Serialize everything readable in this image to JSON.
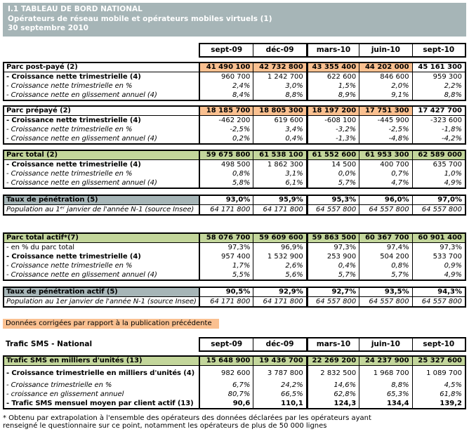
{
  "header": {
    "line1": "I.1 TABLEAU DE BORD NATIONAL",
    "line2": "Opérateurs de réseau mobile et opérateurs mobiles virtuels (1)",
    "line3": "30 septembre 2010"
  },
  "columns": [
    "sept-09",
    "déc-09",
    "mars-10",
    "juin-10",
    "sept-10"
  ],
  "legend_text": "Données corrigées par rapport à la publication précédente",
  "sms_title": "Trafic SMS - National",
  "footnote": {
    "line1": "* Obtenu par extrapolation à l'ensemble des opérateurs des données déclarées par les opérateurs ayant",
    "line2": "renseigné le questionnaire sur ce point, notamment les opérateurs de plus de 50 000 lignes"
  },
  "colors": {
    "header_band": "#a6b5b7",
    "corrected_orange": "#fac090",
    "highlight_green": "#c3d69b",
    "label_gray": "#a6b5b7"
  },
  "tables": [
    {
      "id": "parc-post-paye",
      "rows": [
        {
          "label": "Parc post-payé (2)",
          "label_class": "b",
          "hdr": true,
          "value_class": "b",
          "value_bgs": [
            "orange",
            "orange",
            "orange",
            "orange",
            ""
          ],
          "values": [
            "41 490 100",
            "42 732 800",
            "43 355 400",
            "44 202 000",
            "45 161 300"
          ]
        },
        {
          "label": "- Croissance nette trimestrielle (4)",
          "label_class": "b",
          "value_class": "",
          "values": [
            "960 700",
            "1 242 700",
            "622 600",
            "846 600",
            "959 300"
          ]
        },
        {
          "label": "- Croissance nette trimestrielle en %",
          "label_class": "i",
          "value_class": "i",
          "values": [
            "2,4%",
            "3,0%",
            "1,5%",
            "2,0%",
            "2,2%"
          ]
        },
        {
          "label": "- Croissance nette en glissement annuel (4)",
          "label_class": "i",
          "value_class": "i",
          "values": [
            "8,4%",
            "8,8%",
            "8,9%",
            "9,1%",
            "8,8%"
          ]
        }
      ]
    },
    {
      "id": "parc-prepaye",
      "rows": [
        {
          "label": "Parc prépayé (2)",
          "label_class": "b",
          "hdr": true,
          "value_class": "b",
          "value_bgs": [
            "orange",
            "orange",
            "orange",
            "orange",
            ""
          ],
          "values": [
            "18 185 700",
            "18 805 300",
            "18 197 200",
            "17 751 300",
            "17 427 700"
          ]
        },
        {
          "label": "- Croissance nette trimestrielle (4)",
          "label_class": "b",
          "value_class": "",
          "values": [
            "-462 200",
            "619 600",
            "-608 100",
            "-445 900",
            "-323 600"
          ]
        },
        {
          "label": "- Croissance nette trimestrielle en %",
          "label_class": "i",
          "value_class": "i",
          "values": [
            "-2,5%",
            "3,4%",
            "-3,2%",
            "-2,5%",
            "-1,8%"
          ]
        },
        {
          "label": "- Croissance nette en glissement annuel (4)",
          "label_class": "i",
          "value_class": "i",
          "values": [
            "0,2%",
            "0,4%",
            "-1,3%",
            "-4,8%",
            "-4,2%"
          ]
        }
      ]
    },
    {
      "id": "parc-total",
      "rows": [
        {
          "label": "Parc total (2)",
          "label_class": "b",
          "label_bg": "green",
          "hdr": true,
          "value_class": "b",
          "value_bgs": [
            "green",
            "green",
            "green",
            "green",
            "green"
          ],
          "values": [
            "59 675 800",
            "61 538 100",
            "61 552 600",
            "61 953 300",
            "62 589 000"
          ]
        },
        {
          "label": "- Croissance nette trimestrielle (4)",
          "label_class": "b",
          "value_class": "",
          "values": [
            "498 500",
            "1 862 300",
            "14 500",
            "400 700",
            "635 700"
          ]
        },
        {
          "label": "- Croissance nette trimestrielle en %",
          "label_class": "i",
          "value_class": "i",
          "values": [
            "0,8%",
            "3,1%",
            "0,0%",
            "0,7%",
            "1,0%"
          ]
        },
        {
          "label": "- Croissance nette en glissement annuel (4)",
          "label_class": "i",
          "value_class": "i",
          "values": [
            "5,8%",
            "6,1%",
            "5,7%",
            "4,7%",
            "4,9%"
          ]
        }
      ]
    },
    {
      "id": "taux-penetration",
      "rows": [
        {
          "label": "Taux de pénétration (5)",
          "label_class": "b",
          "label_bg": "gray",
          "hdr": true,
          "value_class": "b",
          "values": [
            "93,0%",
            "95,9%",
            "95,3%",
            "96,0%",
            "97,0%"
          ]
        },
        {
          "label": "Population au 1ᵉʳ janvier de l'année N-1 (source Insee)",
          "label_class": "i",
          "value_class": "i",
          "values": [
            "64 171 800",
            "64 171 800",
            "64 557 800",
            "64 557 800",
            "64 557 800"
          ]
        }
      ]
    },
    {
      "id": "parc-total-actif",
      "rows": [
        {
          "label": "Parc total actif*(7)",
          "label_class": "b",
          "label_bg": "green",
          "hdr": true,
          "value_class": "b",
          "value_bgs": [
            "green",
            "green",
            "green",
            "green",
            "green"
          ],
          "values": [
            "58 076 700",
            "59 609 600",
            "59 863 500",
            "60 367 700",
            "60 901 400"
          ]
        },
        {
          "label": "- en % du parc total",
          "label_class": "",
          "value_class": "",
          "values": [
            "97,3%",
            "96,9%",
            "97,3%",
            "97,4%",
            "97,3%"
          ]
        },
        {
          "label": "- Croissance nette trimestrielle (4)",
          "label_class": "b",
          "value_class": "",
          "values": [
            "957 400",
            "1 532 900",
            "253 900",
            "504 200",
            "533 700"
          ]
        },
        {
          "label": "- Croissance nette trimestrielle en %",
          "label_class": "i",
          "value_class": "i",
          "values": [
            "1,7%",
            "2,6%",
            "0,4%",
            "0,8%",
            "0,9%"
          ]
        },
        {
          "label": "- Croissance nette en glissement annuel (4)",
          "label_class": "i",
          "value_class": "i",
          "values": [
            "5,5%",
            "5,6%",
            "5,7%",
            "5,7%",
            "4,9%"
          ]
        }
      ]
    },
    {
      "id": "taux-penetration-actif",
      "rows": [
        {
          "label": "Taux de pénétration actif (5)",
          "label_class": "b",
          "label_bg": "gray",
          "hdr": true,
          "value_class": "b",
          "values": [
            "90,5%",
            "92,9%",
            "92,7%",
            "93,5%",
            "94,3%"
          ]
        },
        {
          "label": "Population au 1er janvier de l'année N-1 (source Insee)",
          "label_class": "i",
          "value_class": "i",
          "values": [
            "64 171 800",
            "64 171 800",
            "64 557 800",
            "64 557 800",
            "64 557 800"
          ]
        }
      ]
    },
    {
      "id": "trafic-sms",
      "rows": [
        {
          "label": "Trafic SMS en milliers d'unités (13)",
          "label_class": "b",
          "label_bg": "green",
          "hdr": true,
          "value_class": "b",
          "value_bgs": [
            "green",
            "green",
            "green",
            "green",
            "green"
          ],
          "values": [
            "15 648 900",
            "19 436 700",
            "22 269 200",
            "24 237 900",
            "25 327 600"
          ]
        },
        {
          "label": "- Croissance trimestrielle en milliers d'unités (4)",
          "label_class": "b",
          "value_class": "",
          "tall": true,
          "values": [
            "982 600",
            "3 787 800",
            "2 832 500",
            "1 968 700",
            "1 089 700"
          ]
        },
        {
          "label": "- Croissance trimestrielle en %",
          "label_class": "i",
          "value_class": "i",
          "values": [
            "6,7%",
            "24,2%",
            "14,6%",
            "8,8%",
            "4,5%"
          ]
        },
        {
          "label": "- croissance en glissement annuel",
          "label_class": "i",
          "value_class": "i",
          "values": [
            "80,7%",
            "66,5%",
            "62,8%",
            "65,3%",
            "61,8%"
          ]
        },
        {
          "label": "- Trafic SMS mensuel moyen par client actif (13)",
          "label_class": "b",
          "value_class": "b",
          "values": [
            "90,6",
            "110,1",
            "124,3",
            "134,4",
            "139,2"
          ]
        }
      ]
    }
  ]
}
